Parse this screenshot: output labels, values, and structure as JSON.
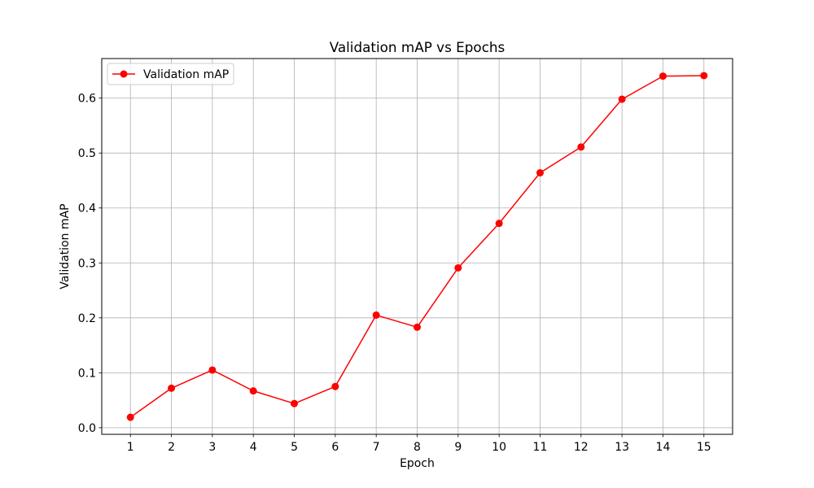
{
  "chart_data": {
    "type": "line",
    "title": "Validation mAP vs Epochs",
    "xlabel": "Epoch",
    "ylabel": "Validation mAP",
    "x": [
      1,
      2,
      3,
      4,
      5,
      6,
      7,
      8,
      9,
      10,
      11,
      12,
      13,
      14,
      15
    ],
    "xticks": [
      "1",
      "2",
      "3",
      "4",
      "5",
      "6",
      "7",
      "8",
      "9",
      "10",
      "11",
      "12",
      "13",
      "14",
      "15"
    ],
    "yticks": [
      "0.0",
      "0.1",
      "0.2",
      "0.3",
      "0.4",
      "0.5",
      "0.6"
    ],
    "xlim": [
      0.3,
      15.7
    ],
    "ylim": [
      -0.012,
      0.672
    ],
    "grid": true,
    "legend_position": "upper-left",
    "series": [
      {
        "name": "Validation mAP",
        "color": "#ff0000",
        "marker": "circle",
        "values": [
          0.019,
          0.072,
          0.105,
          0.067,
          0.044,
          0.075,
          0.205,
          0.183,
          0.291,
          0.372,
          0.464,
          0.511,
          0.598,
          0.64,
          0.641
        ]
      }
    ]
  }
}
